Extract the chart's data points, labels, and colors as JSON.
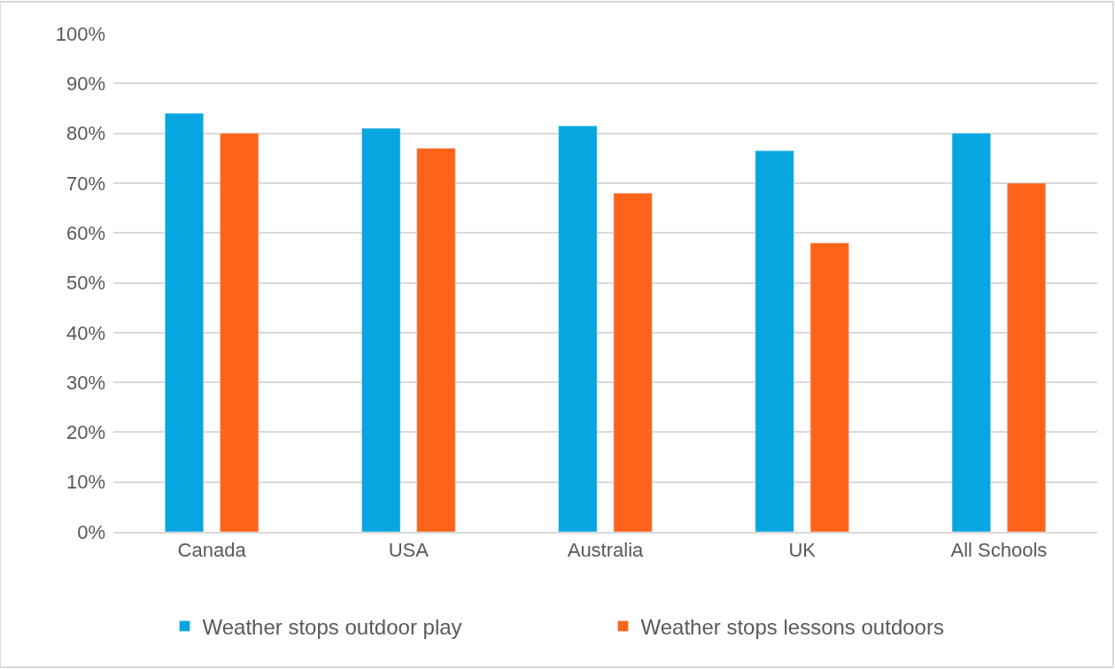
{
  "chart_data": {
    "type": "bar",
    "categories": [
      "Canada",
      "USA",
      "Australia",
      "UK",
      "All Schools"
    ],
    "series": [
      {
        "name": "Weather stops outdoor play",
        "color": "#07a6e0",
        "values": [
          84,
          81,
          81.5,
          76.5,
          80
        ]
      },
      {
        "name": "Weather stops lessons outdoors",
        "color": "#fe6419",
        "values": [
          80,
          77,
          68,
          58,
          70
        ]
      }
    ],
    "ylim": [
      0,
      100
    ],
    "yticks": [
      {
        "value": 0,
        "label": "0%"
      },
      {
        "value": 10,
        "label": "10%"
      },
      {
        "value": 20,
        "label": "20%"
      },
      {
        "value": 30,
        "label": "30%"
      },
      {
        "value": 40,
        "label": "40%"
      },
      {
        "value": 50,
        "label": "50%"
      },
      {
        "value": 60,
        "label": "60%"
      },
      {
        "value": 70,
        "label": "70%"
      },
      {
        "value": 80,
        "label": "80%"
      },
      {
        "value": 90,
        "label": "90%"
      },
      {
        "value": 100,
        "label": "100%"
      }
    ],
    "grid": "y",
    "legend": "bottom"
  }
}
